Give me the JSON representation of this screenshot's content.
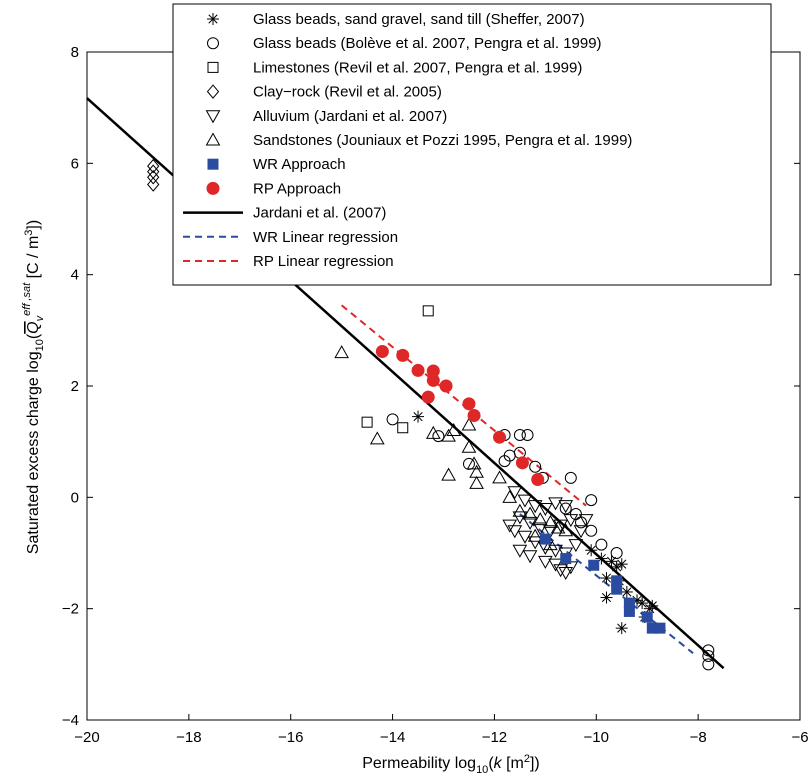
{
  "chart_data": {
    "type": "scatter",
    "title": "",
    "xlabel": {
      "pre": "Permeability log",
      "sub": "10",
      "mid": "(",
      "k": "k",
      "post": " [m",
      "sup": "2",
      "end": "])"
    },
    "ylabel": {
      "pre": "Saturated excess charge log",
      "sub": "10",
      "mid": "(",
      "q": "Q",
      "qsub": "v",
      "qsup": "eff ,sat",
      "post": " [C / m",
      "sup": "3",
      "end": "])"
    },
    "xlim": [
      -20,
      -6
    ],
    "ylim": [
      -4,
      8
    ],
    "xticks": [
      "−20",
      "−18",
      "−16",
      "−14",
      "−12",
      "−10",
      "−8",
      "−6"
    ],
    "xtick_values": [
      -20,
      -18,
      -16,
      -14,
      -12,
      -10,
      -8,
      -6
    ],
    "yticks": [
      "−4",
      "−2",
      "0",
      "2",
      "4",
      "6",
      "8"
    ],
    "ytick_values": [
      -4,
      -2,
      0,
      2,
      4,
      6,
      8
    ],
    "grid": false,
    "legend_position": "top-right",
    "series": [
      {
        "name": "Glass beads, sand gravel, sand till (Sheffer, 2007)",
        "marker": "star",
        "color": "#000000",
        "points": [
          [
            -13.5,
            1.45
          ],
          [
            -10.1,
            -0.95
          ],
          [
            -9.9,
            -1.1
          ],
          [
            -9.7,
            -1.15
          ],
          [
            -9.6,
            -1.25
          ],
          [
            -9.5,
            -1.2
          ],
          [
            -9.8,
            -1.45
          ],
          [
            -9.55,
            -1.5
          ],
          [
            -9.8,
            -1.8
          ],
          [
            -9.4,
            -1.7
          ],
          [
            -9.2,
            -1.85
          ],
          [
            -9.1,
            -1.9
          ],
          [
            -8.95,
            -2.0
          ],
          [
            -9.05,
            -2.15
          ],
          [
            -8.9,
            -1.95
          ],
          [
            -9.5,
            -2.35
          ]
        ]
      },
      {
        "name": "Glass beads (Bolève et al. 2007, Pengra et al. 1999)",
        "marker": "circle",
        "color": "#000000",
        "points": [
          [
            -14.0,
            1.4
          ],
          [
            -13.1,
            1.1
          ],
          [
            -11.8,
            1.12
          ],
          [
            -11.5,
            1.12
          ],
          [
            -11.35,
            1.12
          ],
          [
            -11.7,
            0.75
          ],
          [
            -11.5,
            0.8
          ],
          [
            -11.2,
            0.55
          ],
          [
            -11.8,
            0.65
          ],
          [
            -12.5,
            0.6
          ],
          [
            -11.05,
            0.35
          ],
          [
            -10.5,
            0.35
          ],
          [
            -10.1,
            -0.05
          ],
          [
            -10.6,
            -0.2
          ],
          [
            -10.1,
            -0.6
          ],
          [
            -9.9,
            -0.85
          ],
          [
            -10.3,
            -0.45
          ],
          [
            -9.6,
            -1.0
          ],
          [
            -7.8,
            -2.75
          ],
          [
            -7.8,
            -2.85
          ],
          [
            -7.8,
            -3.0
          ],
          [
            -10.4,
            -0.3
          ]
        ]
      },
      {
        "name": "Limestones (Revil et al. 2007, Pengra et al. 1999)",
        "marker": "square",
        "color": "#000000",
        "points": [
          [
            -13.3,
            3.35
          ],
          [
            -14.5,
            1.35
          ],
          [
            -13.8,
            1.25
          ]
        ]
      },
      {
        "name": "Clay−rock (Revil et al. 2005)",
        "marker": "diamond",
        "color": "#000000",
        "points": [
          [
            -18.7,
            5.95
          ],
          [
            -18.7,
            5.85
          ],
          [
            -18.7,
            5.75
          ],
          [
            -18.7,
            5.62
          ]
        ]
      },
      {
        "name": "Alluvium (Jardani et al. 2007)",
        "marker": "triangle-down",
        "color": "#000000",
        "points": [
          [
            -11.6,
            0.1
          ],
          [
            -11.4,
            -0.05
          ],
          [
            -11.2,
            -0.15
          ],
          [
            -11.0,
            -0.2
          ],
          [
            -10.8,
            -0.1
          ],
          [
            -10.6,
            -0.15
          ],
          [
            -11.5,
            -0.35
          ],
          [
            -11.3,
            -0.45
          ],
          [
            -11.1,
            -0.55
          ],
          [
            -10.9,
            -0.6
          ],
          [
            -10.7,
            -0.5
          ],
          [
            -10.5,
            -0.4
          ],
          [
            -11.6,
            -0.6
          ],
          [
            -11.4,
            -0.7
          ],
          [
            -11.2,
            -0.8
          ],
          [
            -11.0,
            -0.9
          ],
          [
            -10.8,
            -0.95
          ],
          [
            -10.6,
            -1.0
          ],
          [
            -10.4,
            -0.85
          ],
          [
            -11.5,
            -0.95
          ],
          [
            -11.3,
            -1.05
          ],
          [
            -11.0,
            -1.15
          ],
          [
            -10.8,
            -1.2
          ],
          [
            -10.7,
            -1.3
          ],
          [
            -10.6,
            -1.35
          ],
          [
            -10.5,
            -1.25
          ],
          [
            -10.3,
            -0.6
          ],
          [
            -10.2,
            -0.4
          ],
          [
            -11.7,
            -0.5
          ]
        ]
      },
      {
        "name": "Sandstones (Jouniaux et Pozzi 1995, Pengra et al. 1999)",
        "marker": "triangle-up",
        "color": "#000000",
        "points": [
          [
            -15.0,
            2.6
          ],
          [
            -14.3,
            1.05
          ],
          [
            -13.2,
            1.15
          ],
          [
            -12.9,
            1.1
          ],
          [
            -12.8,
            1.2
          ],
          [
            -12.5,
            1.3
          ],
          [
            -12.5,
            0.9
          ],
          [
            -12.4,
            0.6
          ],
          [
            -12.35,
            0.45
          ],
          [
            -12.9,
            0.4
          ],
          [
            -12.35,
            0.25
          ],
          [
            -11.9,
            0.35
          ],
          [
            -11.7,
            0.0
          ],
          [
            -11.5,
            -0.25
          ],
          [
            -11.3,
            -0.3
          ],
          [
            -11.1,
            -0.4
          ],
          [
            -10.9,
            -0.45
          ],
          [
            -10.75,
            -0.55
          ],
          [
            -10.6,
            -0.6
          ],
          [
            -11.2,
            -0.7
          ],
          [
            -10.9,
            -0.85
          ]
        ]
      },
      {
        "name": "WR Approach",
        "marker": "square-filled",
        "color": "#2b4ba0",
        "points": [
          [
            -11.0,
            -0.75
          ],
          [
            -10.6,
            -1.1
          ],
          [
            -10.05,
            -1.22
          ],
          [
            -9.6,
            -1.5
          ],
          [
            -9.6,
            -1.65
          ],
          [
            -9.35,
            -1.9
          ],
          [
            -9.35,
            -2.05
          ],
          [
            -9.0,
            -2.15
          ],
          [
            -8.9,
            -2.35
          ],
          [
            -8.75,
            -2.35
          ]
        ]
      },
      {
        "name": "RP Approach",
        "marker": "circle-filled",
        "color": "#e02727",
        "points": [
          [
            -14.2,
            2.62
          ],
          [
            -13.8,
            2.55
          ],
          [
            -13.5,
            2.28
          ],
          [
            -13.2,
            2.27
          ],
          [
            -13.2,
            2.1
          ],
          [
            -12.95,
            2.0
          ],
          [
            -13.3,
            1.8
          ],
          [
            -12.5,
            1.68
          ],
          [
            -12.4,
            1.47
          ],
          [
            -11.9,
            1.08
          ],
          [
            -11.45,
            0.62
          ],
          [
            -11.15,
            0.32
          ]
        ]
      },
      {
        "name": "Jardani et al. (2007)",
        "marker": "line-solid",
        "color": "#000000",
        "points": [
          [
            -20.0,
            7.17
          ],
          [
            -7.5,
            -3.07
          ]
        ]
      },
      {
        "name": "WR Linear regression",
        "marker": "line-dashed",
        "color": "#2b4ba0",
        "points": [
          [
            -11.5,
            -0.3
          ],
          [
            -8.1,
            -2.8
          ]
        ]
      },
      {
        "name": "RP Linear regression",
        "marker": "line-dashed",
        "color": "#e02727",
        "points": [
          [
            -15.0,
            3.45
          ],
          [
            -10.2,
            -0.15
          ]
        ]
      }
    ]
  }
}
